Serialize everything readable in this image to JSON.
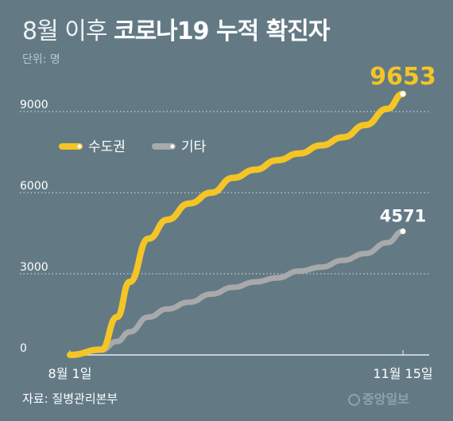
{
  "title": {
    "light": "8월 이후",
    "bold": "코로나19 누적 확진자"
  },
  "unit": "단위: 명",
  "source": "자료: 질병관리본부",
  "logo": "중앙일보",
  "colors": {
    "background": "#637a85",
    "capital": "#f5c526",
    "other": "#a7a9ab",
    "grid": "#d9e2e6"
  },
  "chart_data": {
    "type": "line",
    "x_ticks": [
      "8월 1일",
      "11월 15일"
    ],
    "x": [
      "2020-08-01",
      "2020-08-11",
      "2020-08-16",
      "2020-08-20",
      "2020-08-26",
      "2020-09-01",
      "2020-09-08",
      "2020-09-15",
      "2020-09-22",
      "2020-09-29",
      "2020-10-06",
      "2020-10-13",
      "2020-10-20",
      "2020-10-27",
      "2020-11-03",
      "2020-11-10",
      "2020-11-15"
    ],
    "y_ticks": [
      0,
      3000,
      6000,
      9000
    ],
    "ylim": [
      0,
      9800
    ],
    "series": [
      {
        "name": "수도권",
        "color": "#f5c526",
        "values": [
          0,
          200,
          1400,
          2700,
          4300,
          5000,
          5600,
          6000,
          6550,
          6850,
          7200,
          7450,
          7750,
          8050,
          8500,
          9100,
          9653
        ]
      },
      {
        "name": "기타",
        "color": "#a7a9ab",
        "values": [
          0,
          180,
          500,
          850,
          1400,
          1700,
          1950,
          2250,
          2500,
          2700,
          2850,
          3100,
          3250,
          3500,
          3750,
          4150,
          4571
        ]
      }
    ],
    "end_labels": [
      "9653",
      "4571"
    ]
  }
}
